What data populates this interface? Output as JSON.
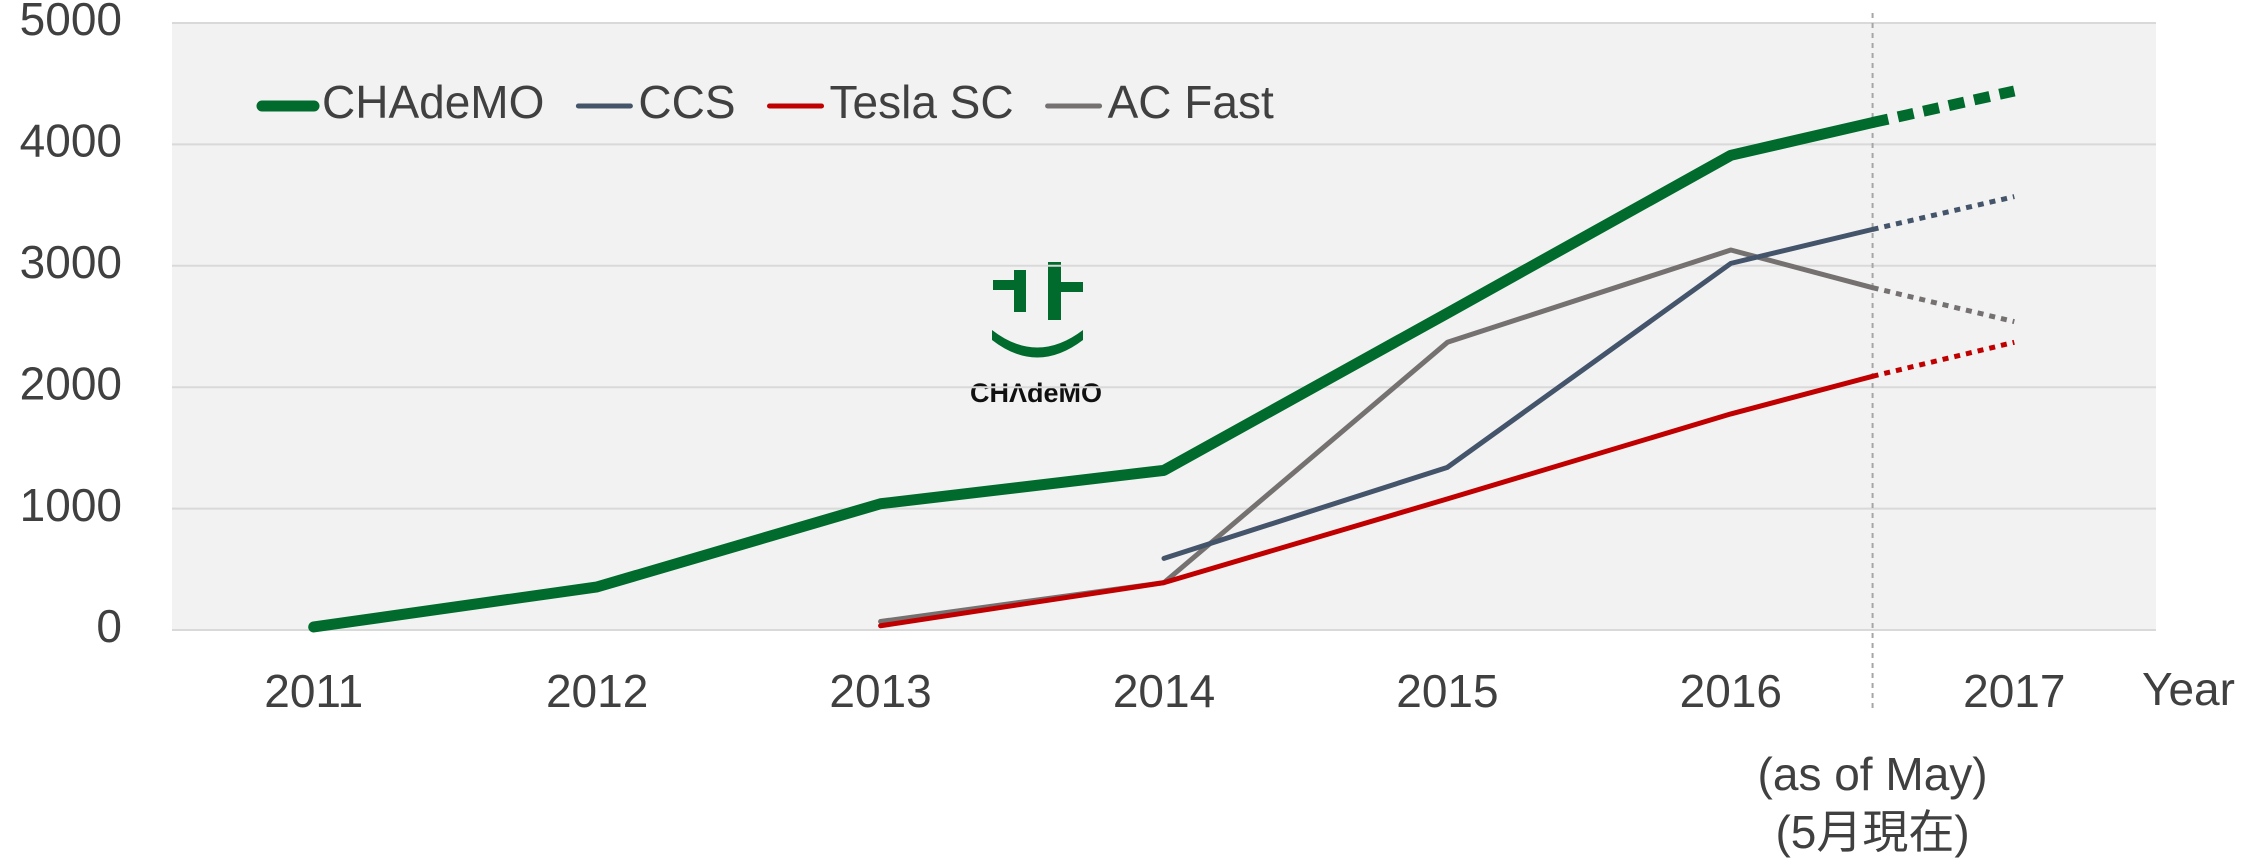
{
  "chart_data": {
    "type": "line",
    "x": [
      2011,
      2012,
      2013,
      2014,
      2015,
      2016,
      2016.5,
      2017
    ],
    "xlim": [
      2010.5,
      2017.5
    ],
    "xticks": [
      2011,
      2012,
      2013,
      2014,
      2015,
      2016,
      2017
    ],
    "xlabel": "Year",
    "ylim": [
      0,
      5000
    ],
    "yticks": [
      0,
      1000,
      2000,
      3000,
      4000,
      5000
    ],
    "grid": true,
    "legend": "top-left",
    "dashed_after": 2016.5,
    "annotation": [
      "(as of May)",
      "(5月現在)"
    ],
    "logo_text": "CHΛdeMO",
    "series": [
      {
        "name": "CHAdeMO",
        "color": "#006b2d",
        "values": [
          25,
          355,
          1040,
          1315,
          2610,
          3910,
          4180,
          4440
        ]
      },
      {
        "name": "CCS",
        "color": "#44546a",
        "values": [
          null,
          null,
          null,
          590,
          1340,
          3020,
          3300,
          3570
        ]
      },
      {
        "name": "Tesla SC",
        "color": "#c00000",
        "values": [
          null,
          null,
          35,
          390,
          1080,
          1780,
          2090,
          2370
        ]
      },
      {
        "name": "AC Fast",
        "color": "#767171",
        "values": [
          null,
          null,
          70,
          390,
          2370,
          3130,
          2820,
          2540
        ]
      }
    ]
  }
}
